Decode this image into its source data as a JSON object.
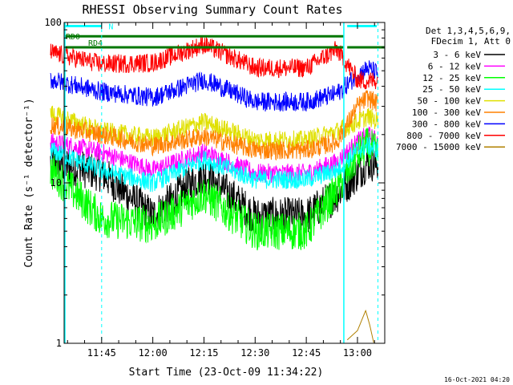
{
  "chart_data": {
    "type": "line",
    "title": "RHESSI Observing Summary Count Rates",
    "xlabel": "Start Time (23-Oct-09 11:34:22)",
    "ylabel": "Count Rate (s⁻¹ detector⁻¹)",
    "y_scale": "log",
    "ylim": [
      1,
      100
    ],
    "xlim": [
      "11:34",
      "13:08"
    ],
    "y_ticks": [
      "1",
      "10",
      "100"
    ],
    "x_ticks": [
      "11:45",
      "12:00",
      "12:15",
      "12:30",
      "12:45",
      "13:00"
    ],
    "grid": false,
    "legend_position": "right",
    "legend_header": [
      "Det 1,3,4,5,6,9,",
      "FDecim 1, Att 0"
    ],
    "timestamp": "16-Oct-2021 04:20",
    "annotations": {
      "n_label": "N",
      "rd0_label": "RD0",
      "rd4_label": "RD4"
    },
    "series": [
      {
        "name": "3 - 6 keV",
        "color": "#000000",
        "values": [
          [
            11.5,
            13.5
          ],
          [
            11.75,
            11.5
          ],
          [
            12.0,
            6.2
          ],
          [
            12.25,
            11.5
          ],
          [
            12.5,
            6.2
          ],
          [
            12.75,
            6.2
          ],
          [
            12.9,
            8.5
          ],
          [
            13.0,
            11.5
          ],
          [
            13.05,
            13.5
          ],
          [
            13.1,
            13
          ]
        ]
      },
      {
        "name": "6 - 12 keV",
        "color": "#ff00ff",
        "values": [
          [
            11.5,
            18
          ],
          [
            11.75,
            15.5
          ],
          [
            12.0,
            12
          ],
          [
            12.25,
            15.5
          ],
          [
            12.5,
            11.5
          ],
          [
            12.75,
            11.5
          ],
          [
            12.9,
            13.5
          ],
          [
            13.0,
            18
          ],
          [
            13.05,
            20
          ],
          [
            13.1,
            18
          ]
        ]
      },
      {
        "name": "12 - 25 keV",
        "color": "#00ff00",
        "values": [
          [
            11.5,
            12
          ],
          [
            11.75,
            6
          ],
          [
            12.0,
            5.5
          ],
          [
            12.25,
            8.5
          ],
          [
            12.5,
            5
          ],
          [
            12.75,
            5
          ],
          [
            12.9,
            9
          ],
          [
            13.0,
            15
          ],
          [
            13.05,
            17
          ],
          [
            13.1,
            15
          ]
        ]
      },
      {
        "name": "25 - 50 keV",
        "color": "#00ffff",
        "values": [
          [
            11.5,
            16
          ],
          [
            11.75,
            12
          ],
          [
            12.0,
            10
          ],
          [
            12.25,
            14
          ],
          [
            12.5,
            10.5
          ],
          [
            12.75,
            10.5
          ],
          [
            12.9,
            12
          ],
          [
            13.0,
            16
          ],
          [
            13.05,
            17
          ],
          [
            13.1,
            16
          ]
        ]
      },
      {
        "name": "50 - 100 keV",
        "color": "#e0e000",
        "values": [
          [
            11.5,
            27
          ],
          [
            11.75,
            21
          ],
          [
            12.0,
            19
          ],
          [
            12.25,
            24
          ],
          [
            12.5,
            18.5
          ],
          [
            12.75,
            18.5
          ],
          [
            12.9,
            21
          ],
          [
            13.0,
            24
          ],
          [
            13.05,
            26
          ],
          [
            13.1,
            24
          ]
        ]
      },
      {
        "name": "100 - 300 keV",
        "color": "#ff8000",
        "values": [
          [
            11.5,
            23
          ],
          [
            11.75,
            20
          ],
          [
            12.0,
            17
          ],
          [
            12.25,
            19.5
          ],
          [
            12.5,
            16
          ],
          [
            12.75,
            16
          ],
          [
            12.9,
            18
          ],
          [
            13.0,
            30
          ],
          [
            13.05,
            34
          ],
          [
            13.1,
            31
          ]
        ]
      },
      {
        "name": "300 - 800 keV",
        "color": "#0000ff",
        "values": [
          [
            11.5,
            44
          ],
          [
            11.75,
            37
          ],
          [
            12.0,
            34
          ],
          [
            12.25,
            44
          ],
          [
            12.5,
            32
          ],
          [
            12.75,
            32
          ],
          [
            12.9,
            36
          ],
          [
            13.0,
            47
          ],
          [
            13.05,
            52
          ],
          [
            13.1,
            48
          ]
        ]
      },
      {
        "name": "800 - 7000 keV",
        "color": "#ff0000",
        "values": [
          [
            11.5,
            65
          ],
          [
            11.75,
            55
          ],
          [
            12.0,
            56
          ],
          [
            12.25,
            73
          ],
          [
            12.5,
            52
          ],
          [
            12.75,
            52
          ],
          [
            12.9,
            68
          ],
          [
            13.0,
            44
          ],
          [
            13.05,
            43
          ],
          [
            13.1,
            44
          ]
        ]
      },
      {
        "name": "7000 - 15000 keV",
        "color": "#b08000",
        "values": [
          [
            12.95,
            1.05
          ],
          [
            13.0,
            1.2
          ],
          [
            13.04,
            1.6
          ],
          [
            13.06,
            1.3
          ],
          [
            13.08,
            1.0
          ]
        ]
      }
    ],
    "colors": {
      "attenuator_line": "#007700",
      "n_bar": "#00ffff",
      "boundary_line": "#00ffff"
    }
  }
}
